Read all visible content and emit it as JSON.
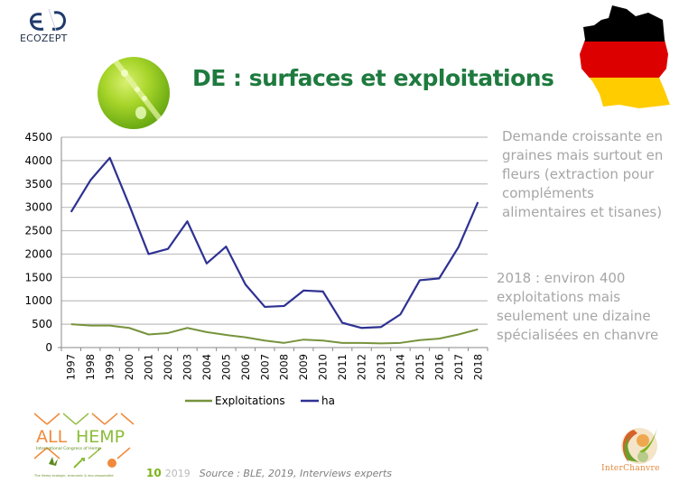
{
  "header": {
    "logo_text": "ECOZEPT",
    "title": "DE : surfaces et exploitations"
  },
  "notes": [
    "Demande croissante en graines mais surtout en fleurs (extraction pour compléments alimentaires et tisanes)",
    "2018 : environ 400 exploitations mais seulement une dizaine spécialisées en chanvre"
  ],
  "footer": {
    "page_number": "10",
    "year": "2019",
    "source": "Source : BLE, 2019, Interviews experts",
    "allhemp_title": "ALL HEMP",
    "allhemp_subtitle": "International Congress of Hemp",
    "allhemp_tagline": "The Hemp ecologic, economic & eco-responsible",
    "partner_name": "InterChanvre"
  },
  "icons": {
    "top_left_logo": "ecozept-logo",
    "leaf_image": "grass-dewdrop-image",
    "map": "germany-flag-map",
    "bottom_left_logo": "allhemp-logo",
    "bottom_right_logo": "interchanvre-logo"
  },
  "colors": {
    "title": "#1e7a3e",
    "ha_line": "#2e3192",
    "exploitations_line": "#77933c",
    "note_text": "#a6a6a6",
    "page_number": "#7ab317"
  },
  "chart_data": {
    "type": "line",
    "title": "",
    "xlabel": "",
    "ylabel": "",
    "ylim": [
      0,
      4500
    ],
    "yticks": [
      0,
      500,
      1000,
      1500,
      2000,
      2500,
      3000,
      3500,
      4000,
      4500
    ],
    "grid": true,
    "legend_position": "bottom",
    "x": [
      "1997",
      "1998",
      "1999",
      "2000",
      "2001",
      "2002",
      "2003",
      "2004",
      "2005",
      "2006",
      "2007",
      "2008",
      "2009",
      "2010",
      "2011",
      "2012",
      "2013",
      "2014",
      "2015",
      "2016",
      "2017",
      "2018"
    ],
    "series": [
      {
        "name": "Exploitations",
        "color": "#77933c",
        "values": [
          500,
          470,
          470,
          420,
          280,
          310,
          420,
          330,
          270,
          220,
          150,
          100,
          170,
          150,
          100,
          100,
          90,
          100,
          160,
          190,
          280,
          390
        ]
      },
      {
        "name": "ha",
        "color": "#2e3192",
        "values": [
          2900,
          3580,
          4060,
          3050,
          2000,
          2110,
          2700,
          1800,
          2160,
          1350,
          870,
          890,
          1220,
          1200,
          530,
          420,
          440,
          710,
          1440,
          1480,
          2150,
          3110
        ]
      }
    ]
  }
}
